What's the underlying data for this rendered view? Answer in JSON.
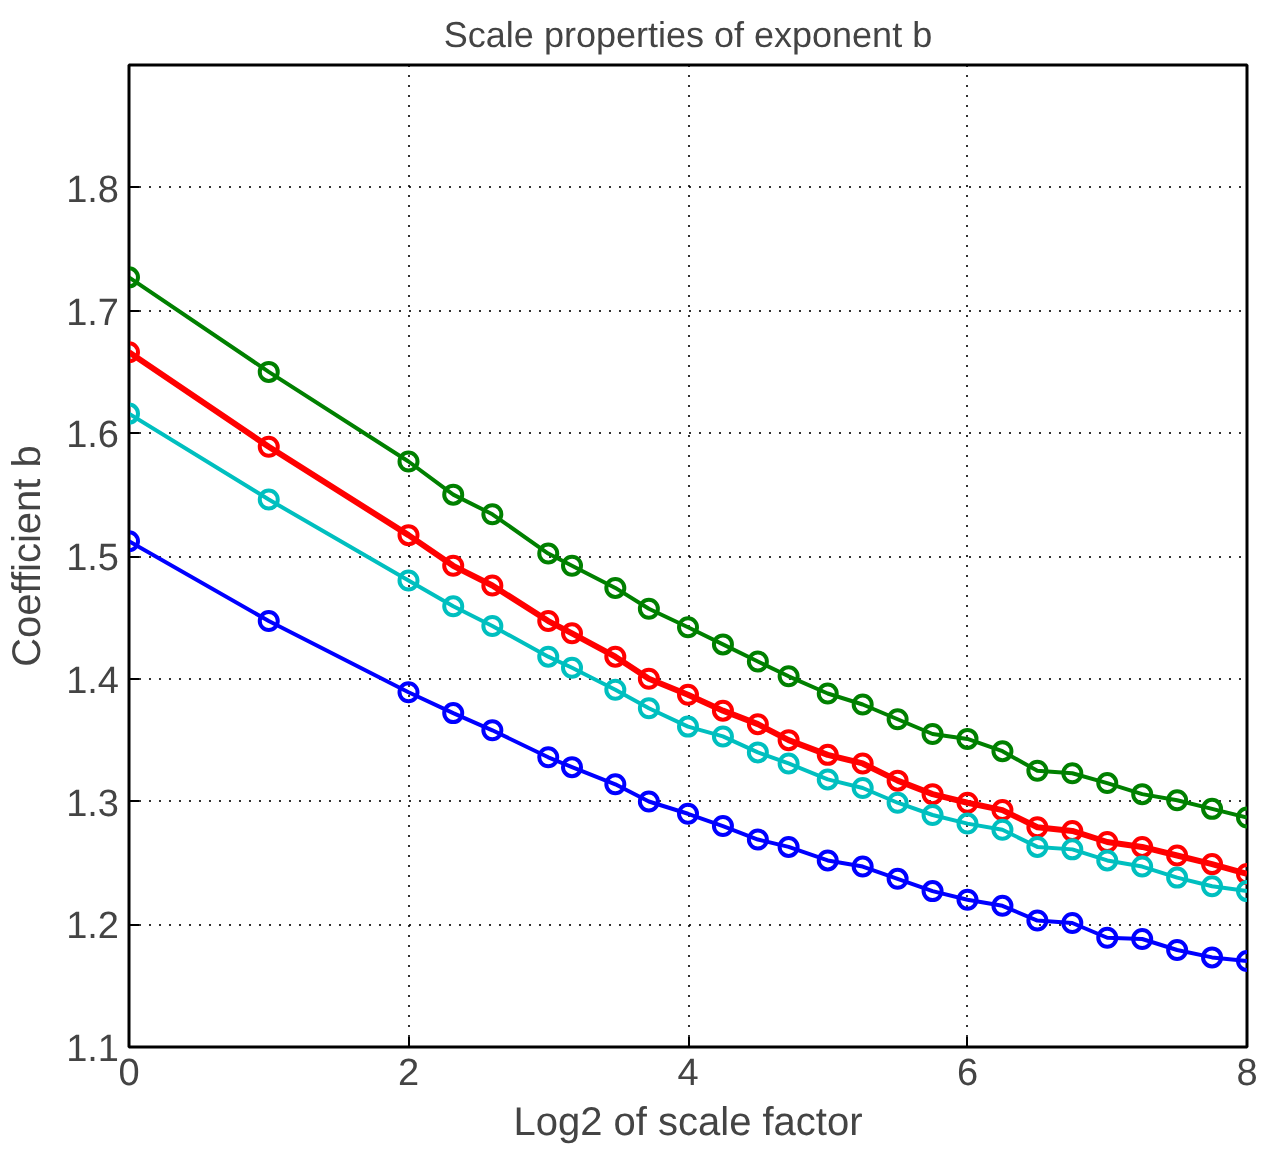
{
  "chart_data": {
    "type": "line",
    "title": "Scale properties of exponent b",
    "xlabel": "Log2 of scale factor",
    "ylabel": "Coefficient b",
    "x": [
      0,
      1,
      2,
      2.32,
      2.6,
      3,
      3.17,
      3.48,
      3.72,
      4,
      4.25,
      4.5,
      4.72,
      5,
      5.25,
      5.5,
      5.75,
      6,
      6.25,
      6.5,
      6.75,
      7,
      7.25,
      7.5,
      7.75,
      8
    ],
    "series": [
      {
        "color": "#008000",
        "values": [
          1.727,
          1.65,
          1.577,
          1.55,
          1.534,
          1.502,
          1.492,
          1.474,
          1.457,
          1.442,
          1.428,
          1.414,
          1.402,
          1.388,
          1.379,
          1.367,
          1.355,
          1.351,
          1.341,
          1.325,
          1.323,
          1.315,
          1.306,
          1.301,
          1.294,
          1.287
        ]
      },
      {
        "color": "#ff0000",
        "values": [
          1.666,
          1.589,
          1.517,
          1.492,
          1.476,
          1.447,
          1.437,
          1.418,
          1.4,
          1.387,
          1.374,
          1.363,
          1.35,
          1.338,
          1.331,
          1.317,
          1.306,
          1.299,
          1.293,
          1.279,
          1.276,
          1.267,
          1.263,
          1.256,
          1.249,
          1.241
        ]
      },
      {
        "color": "#00bfbf",
        "values": [
          1.616,
          1.546,
          1.48,
          1.459,
          1.443,
          1.418,
          1.409,
          1.391,
          1.376,
          1.361,
          1.353,
          1.34,
          1.331,
          1.318,
          1.311,
          1.299,
          1.289,
          1.282,
          1.277,
          1.263,
          1.261,
          1.252,
          1.247,
          1.238,
          1.231,
          1.227
        ]
      },
      {
        "color": "#0000ff",
        "values": [
          1.512,
          1.447,
          1.389,
          1.372,
          1.358,
          1.336,
          1.328,
          1.314,
          1.3,
          1.29,
          1.28,
          1.269,
          1.263,
          1.252,
          1.247,
          1.237,
          1.227,
          1.22,
          1.215,
          1.203,
          1.201,
          1.189,
          1.188,
          1.179,
          1.173,
          1.17
        ]
      }
    ],
    "xlim": [
      0,
      8
    ],
    "ylim": [
      1.1,
      1.9
    ],
    "xticks": [
      0,
      2,
      4,
      6,
      8
    ],
    "yticks": [
      1.1,
      1.2,
      1.3,
      1.4,
      1.5,
      1.6,
      1.7,
      1.8
    ],
    "grid": true,
    "marker": "circle",
    "line_style": "solid"
  }
}
